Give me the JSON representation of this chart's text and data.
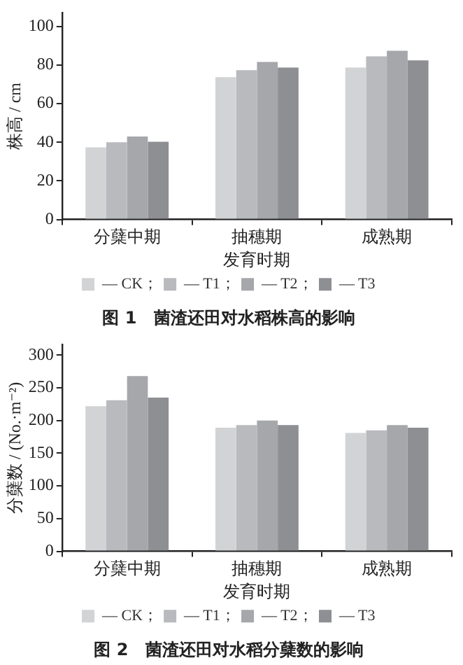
{
  "chart_data": [
    {
      "type": "bar",
      "title": "图 1　菌渣还田对水稻株高的影响",
      "xlabel": "发育时期",
      "ylabel": "株高 / cm",
      "categories": [
        "分蘖中期",
        "抽穗期",
        "成熟期"
      ],
      "series": [
        {
          "name": "— CK；",
          "color": "#d2d3d5",
          "values": [
            37.4,
            73.7,
            78.7
          ]
        },
        {
          "name": "— T1；",
          "color": "#b9babd",
          "values": [
            40,
            77.3,
            84.5
          ]
        },
        {
          "name": "— T2；",
          "color": "#a6a7ab",
          "values": [
            43,
            81.6,
            87.4
          ]
        },
        {
          "name": "— T3",
          "color": "#8e8f93",
          "values": [
            40.3,
            78.7,
            82.4
          ]
        }
      ],
      "ylim": [
        0,
        107
      ],
      "yticks": [
        0,
        20,
        40,
        60,
        80,
        100
      ],
      "grid": false,
      "legend": "bottom"
    },
    {
      "type": "bar",
      "title": "图 2　菌渣还田对水稻分蘖数的影响",
      "xlabel": "发育时期",
      "ylabel": "分蘖数 / (No.·m⁻²)",
      "categories": [
        "分蘖中期",
        "抽穗期",
        "成熟期"
      ],
      "series": [
        {
          "name": "— CK；",
          "color": "#d2d3d5",
          "values": [
            222,
            189,
            181
          ]
        },
        {
          "name": "— T1；",
          "color": "#b9babd",
          "values": [
            231,
            193,
            185
          ]
        },
        {
          "name": "— T2；",
          "color": "#a6a7ab",
          "values": [
            268,
            200,
            193
          ]
        },
        {
          "name": "— T3",
          "color": "#8e8f93",
          "values": [
            235,
            193,
            189
          ]
        }
      ],
      "ylim": [
        0,
        316
      ],
      "yticks": [
        0,
        50,
        100,
        150,
        200,
        250,
        300
      ],
      "grid": false,
      "legend": "bottom"
    }
  ]
}
